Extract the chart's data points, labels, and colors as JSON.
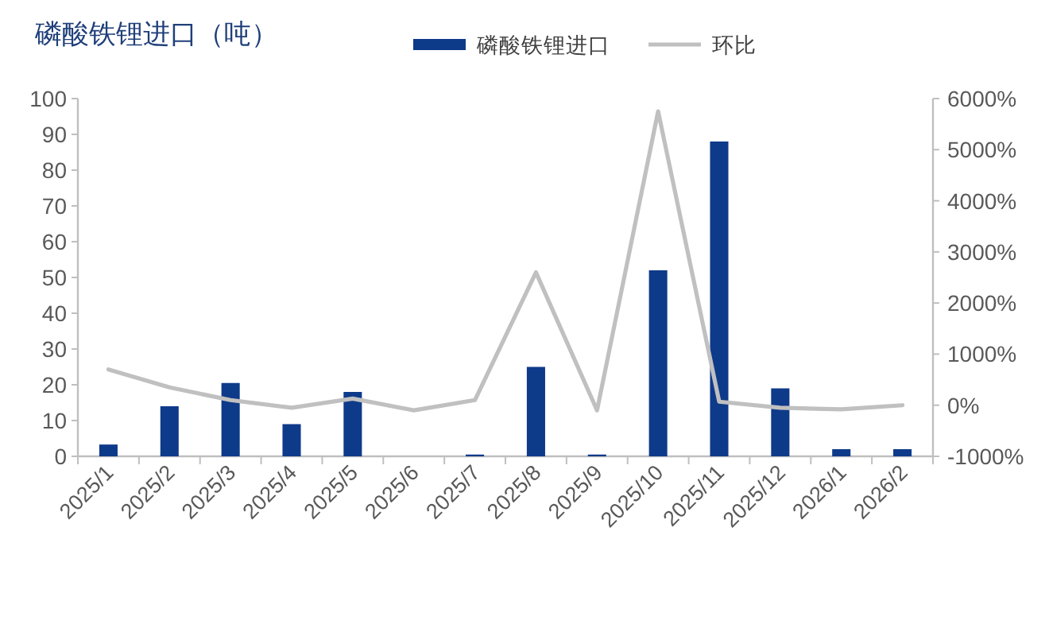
{
  "chart_data": {
    "type": "bar",
    "title": "磷酸铁锂进口（吨）",
    "categories": [
      "2025/1",
      "2025/2",
      "2025/3",
      "2025/4",
      "2025/5",
      "2025/6",
      "2025/7",
      "2025/8",
      "2025/9",
      "2025/10",
      "2025/11",
      "2025/12",
      "2026/1",
      "2026/2"
    ],
    "series": [
      {
        "name": "磷酸铁锂进口",
        "color": "#0e3a8a",
        "values": [
          3.3,
          14,
          20.5,
          9,
          18,
          0,
          0.5,
          25,
          0.5,
          52,
          88,
          19,
          2,
          2
        ]
      },
      {
        "name": "环比",
        "type": "line",
        "axis": "y2",
        "color": "#c0c0c0",
        "values": [
          700,
          350,
          100,
          -50,
          130,
          -100,
          100,
          2600,
          -100,
          5750,
          70,
          -50,
          -80,
          0
        ]
      }
    ],
    "ylim": [
      0,
      100
    ],
    "yticks": [
      0,
      10,
      20,
      30,
      40,
      50,
      60,
      70,
      80,
      90,
      100
    ],
    "y2lim": [
      -1000,
      6000
    ],
    "y2ticks": [
      {
        "value": -1000,
        "label": "-1000%"
      },
      {
        "value": 0,
        "label": "0%"
      },
      {
        "value": 1000,
        "label": "1000%"
      },
      {
        "value": 2000,
        "label": "2000%"
      },
      {
        "value": 3000,
        "label": "3000%"
      },
      {
        "value": 4000,
        "label": "4000%"
      },
      {
        "value": 5000,
        "label": "5000%"
      },
      {
        "value": 6000,
        "label": "6000%"
      }
    ],
    "legend": "top"
  }
}
